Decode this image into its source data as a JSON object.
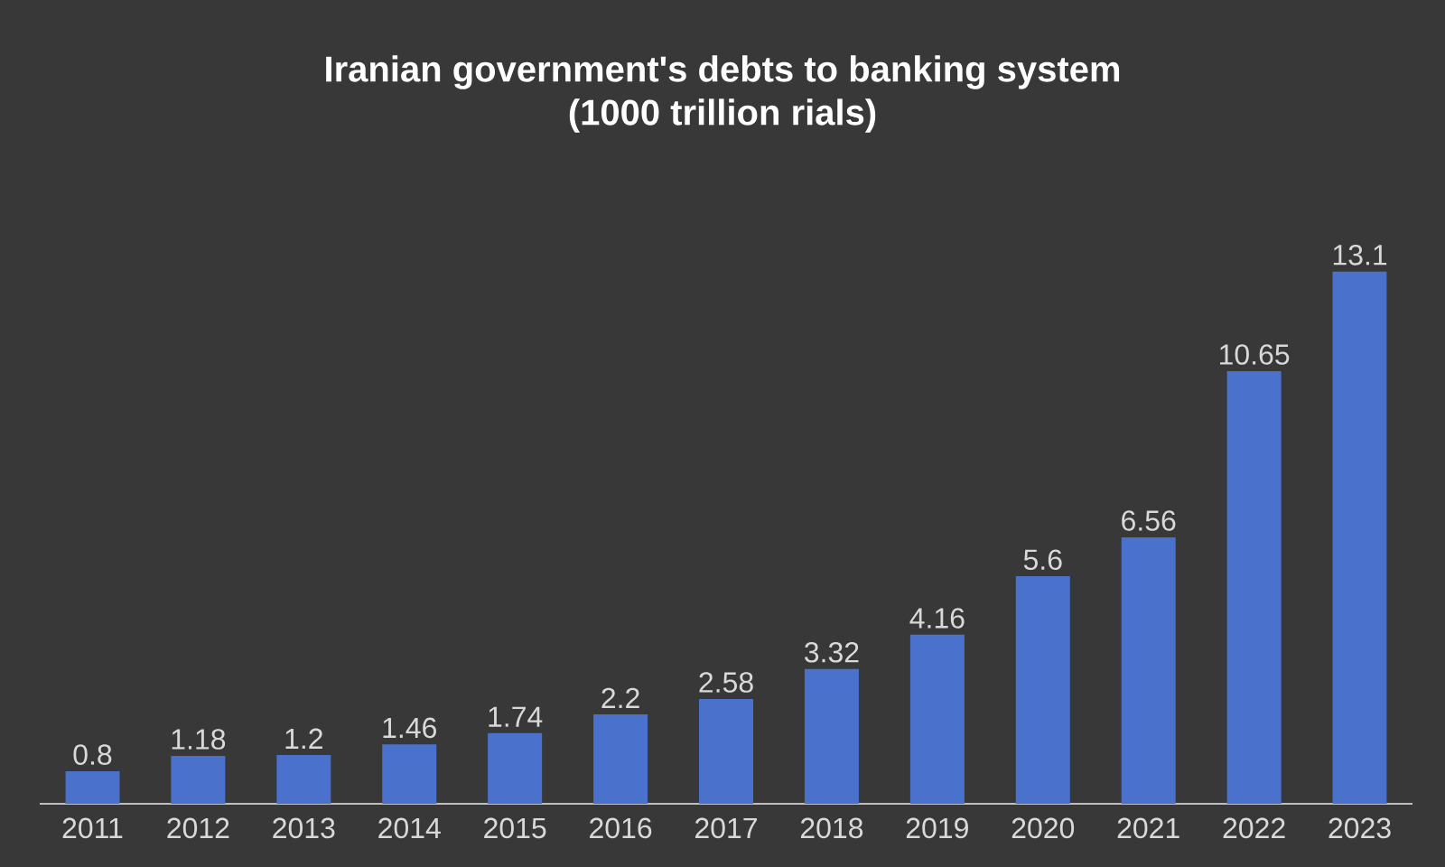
{
  "chart_data": {
    "type": "bar",
    "title": "Iranian government's debts to banking system",
    "subtitle": "(1000 trillion rials)",
    "categories": [
      "2011",
      "2012",
      "2013",
      "2014",
      "2015",
      "2016",
      "2017",
      "2018",
      "2019",
      "2020",
      "2021",
      "2022",
      "2023"
    ],
    "values": [
      0.8,
      1.18,
      1.2,
      1.46,
      1.74,
      2.2,
      2.58,
      3.32,
      4.16,
      5.6,
      6.56,
      10.65,
      13.1
    ],
    "color": "#4a72cc",
    "data_labels": true,
    "tick_labels": "x"
  }
}
